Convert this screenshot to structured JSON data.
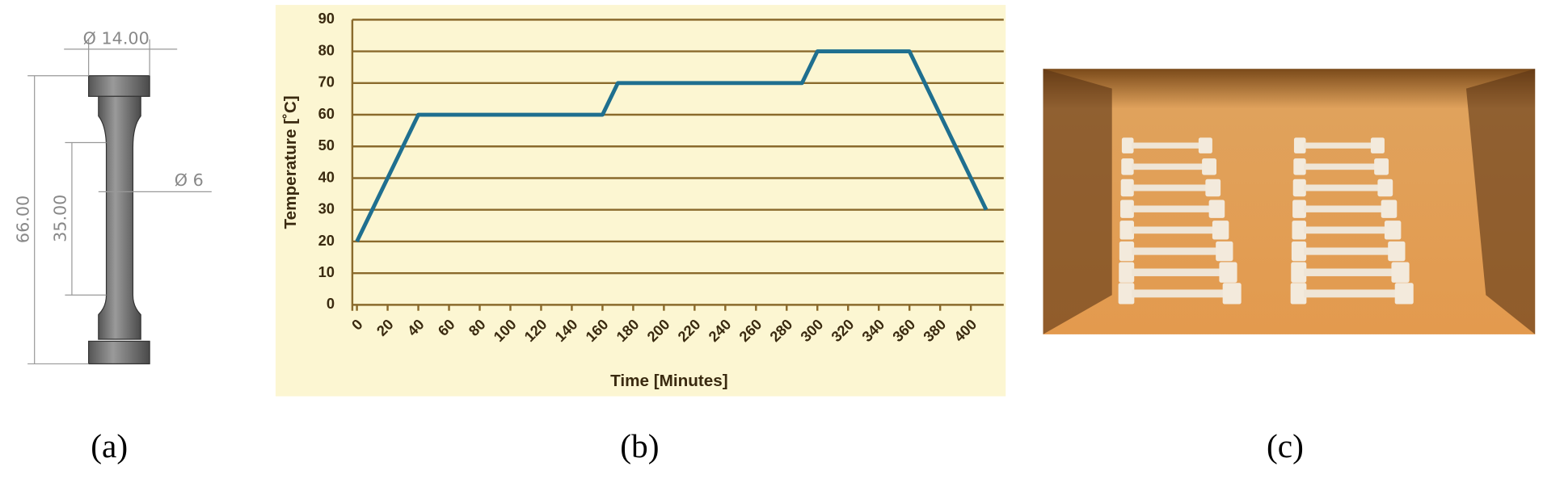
{
  "panels": {
    "a": "(a)",
    "b": "(b)",
    "c": "(c)"
  },
  "drawing": {
    "head_diameter": "Ø 14.00",
    "gauge_diameter": "Ø 6",
    "total_length": "66.00",
    "gauge_length": "35.00"
  },
  "chart_data": {
    "type": "line",
    "x_label": "Time [Minutes]",
    "y_label": "Temperature [˚C]",
    "x": [
      0,
      40,
      160,
      170,
      290,
      300,
      360,
      410
    ],
    "series": [
      {
        "color": "#1f6f8f",
        "values": [
          20,
          60,
          60,
          70,
          70,
          80,
          80,
          30
        ]
      }
    ],
    "xlim": [
      -3,
      415
    ],
    "xticks": [
      0,
      20,
      40,
      60,
      80,
      100,
      120,
      140,
      160,
      180,
      200,
      220,
      240,
      260,
      280,
      300,
      320,
      340,
      360,
      380,
      400
    ],
    "ylim": [
      0,
      90
    ],
    "yticks": [
      0,
      10,
      20,
      30,
      40,
      50,
      60,
      70,
      80,
      90
    ],
    "grid": true,
    "grid_color": "#8a6a2c",
    "background": "#fcf6d2"
  }
}
